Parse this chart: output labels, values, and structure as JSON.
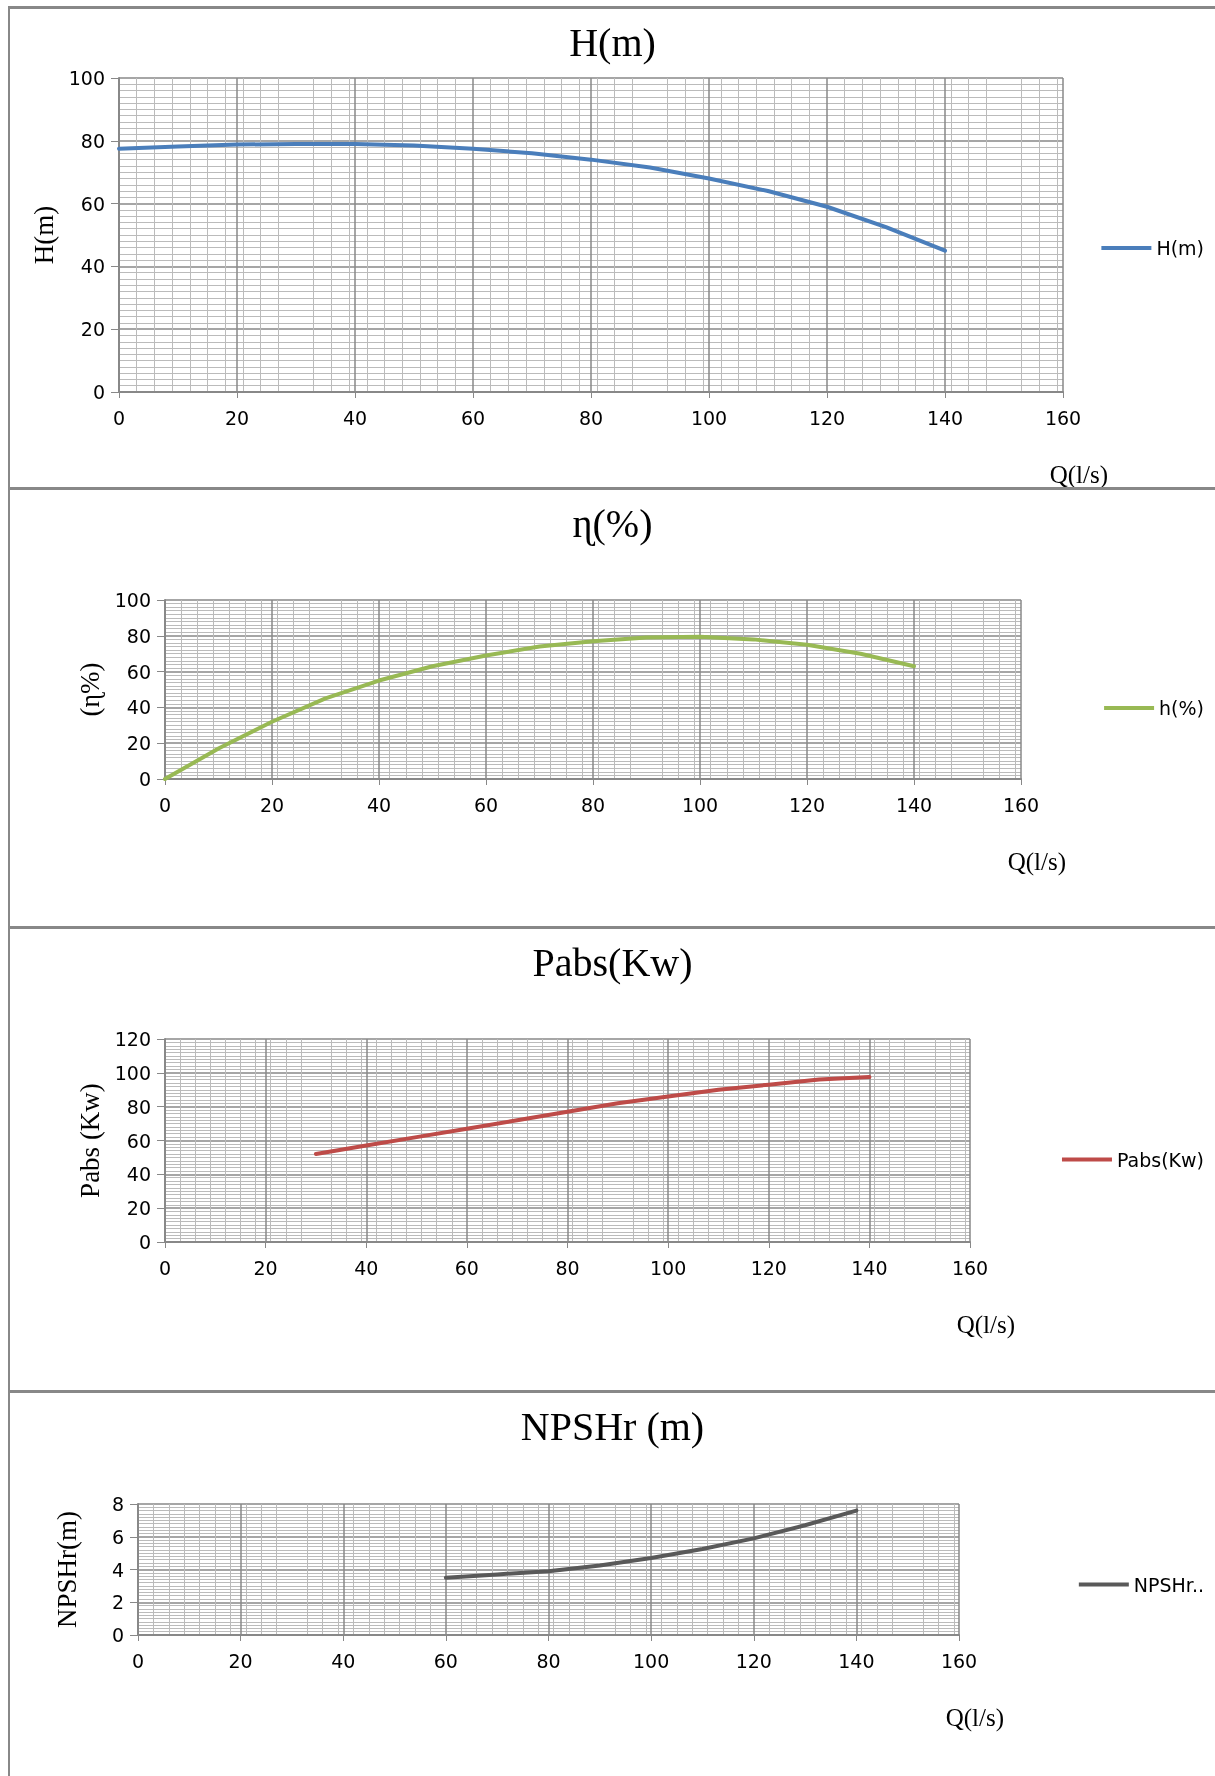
{
  "chart_data": [
    {
      "type": "line",
      "title": "H(m)",
      "xlabel": "Q(l/s)",
      "ylabel": "H(m)",
      "x": [
        0,
        10,
        20,
        30,
        40,
        50,
        60,
        70,
        80,
        90,
        100,
        110,
        120,
        130,
        140
      ],
      "series": [
        {
          "name": "H(m)",
          "color": "#4a7ebb",
          "values": [
            77.5,
            78.2,
            78.8,
            79,
            79,
            78.5,
            77.5,
            76,
            74,
            71.5,
            68,
            64,
            59,
            52.5,
            45
          ]
        }
      ],
      "xlim": [
        0,
        160
      ],
      "xticks": [
        0,
        20,
        40,
        60,
        80,
        100,
        120,
        140,
        160
      ],
      "ylim": [
        0,
        100
      ],
      "yticks": [
        0,
        20,
        40,
        60,
        80,
        100
      ],
      "grid": true,
      "legend": "right",
      "marker": "none",
      "line_style": "solid"
    },
    {
      "type": "line",
      "title": "ɳ(%)",
      "xlabel": "Q(l/s)",
      "ylabel": "(ɳ%)",
      "x": [
        0,
        10,
        20,
        30,
        40,
        50,
        60,
        70,
        80,
        90,
        100,
        110,
        120,
        130,
        140
      ],
      "series": [
        {
          "name": "h(%)",
          "color": "#98b954",
          "values": [
            0,
            17,
            32,
            45,
            55,
            63,
            69,
            74,
            77,
            79,
            79.5,
            78,
            75,
            70,
            63
          ]
        }
      ],
      "xlim": [
        0,
        160
      ],
      "xticks": [
        0,
        20,
        40,
        60,
        80,
        100,
        120,
        140,
        160
      ],
      "ylim": [
        0,
        100
      ],
      "yticks": [
        0,
        20,
        40,
        60,
        80,
        100
      ],
      "grid": true,
      "legend": "right",
      "marker": "none",
      "line_style": "solid"
    },
    {
      "type": "line",
      "title": "Pabs(Kw)",
      "xlabel": "Q(l/s)",
      "ylabel": "Pabs (Kw)",
      "x": [
        30,
        40,
        50,
        60,
        70,
        80,
        90,
        100,
        110,
        120,
        130,
        140
      ],
      "series": [
        {
          "name": "Pabs(Kw)",
          "color": "#be4b48",
          "values": [
            52,
            57,
            62,
            67,
            72,
            77,
            82,
            86,
            90,
            93,
            96,
            97.5
          ]
        }
      ],
      "xlim": [
        0,
        160
      ],
      "xticks": [
        0,
        20,
        40,
        60,
        80,
        100,
        120,
        140,
        160
      ],
      "ylim": [
        0,
        120
      ],
      "yticks": [
        0,
        20,
        40,
        60,
        80,
        100,
        120
      ],
      "grid": true,
      "legend": "right",
      "marker": "none",
      "line_style": "solid"
    },
    {
      "type": "line",
      "title": "NPSHr (m)",
      "xlabel": "Q(l/s)",
      "ylabel": "NPSHr(m)",
      "x": [
        60,
        70,
        80,
        90,
        100,
        110,
        120,
        130,
        140
      ],
      "series": [
        {
          "name": "NPSHr..",
          "color": "#595959",
          "values": [
            3.5,
            3.7,
            3.9,
            4.25,
            4.7,
            5.25,
            5.9,
            6.7,
            7.6
          ]
        }
      ],
      "xlim": [
        0,
        160
      ],
      "xticks": [
        0,
        20,
        40,
        60,
        80,
        100,
        120,
        140,
        160
      ],
      "ylim": [
        0,
        8
      ],
      "yticks": [
        0,
        2,
        4,
        6,
        8
      ],
      "grid": true,
      "legend": "right",
      "marker": "none",
      "line_style": "solid"
    }
  ]
}
